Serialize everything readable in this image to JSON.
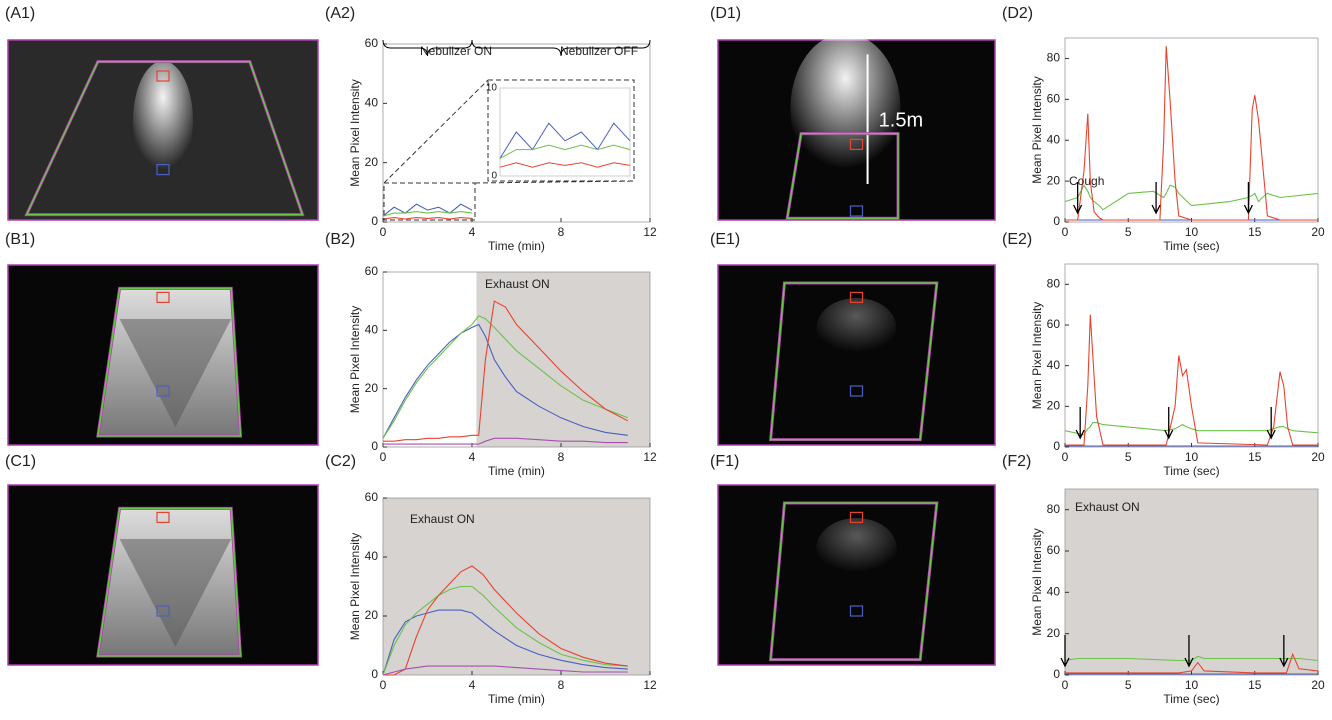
{
  "photo_labels": [
    "(A1)",
    "(B1)",
    "(C1)",
    "(D1)",
    "(E1)",
    "(F1)"
  ],
  "photo_text": "1.5m",
  "chart_data": [
    {
      "type": "line",
      "label": "(A2)",
      "xlabel": "Time (min)",
      "ylabel": "Mean Pixel Intensity",
      "xlim": [
        0,
        12
      ],
      "ylim": [
        0,
        60
      ],
      "xticks": [
        0,
        4,
        8,
        12
      ],
      "yticks": [
        0,
        20,
        40,
        60
      ],
      "annotations": [
        "Nebulizer ON",
        "Nebulizer OFF"
      ],
      "inset": {
        "ylim": [
          0,
          10
        ],
        "yticks": [
          0,
          10
        ]
      },
      "series": [
        {
          "color": "#4a5fc1",
          "x": [
            0,
            0.5,
            1,
            1.5,
            2,
            2.5,
            3,
            3.5,
            4
          ],
          "values": [
            2,
            5,
            3,
            6,
            4,
            5,
            3,
            6,
            4
          ]
        },
        {
          "color": "#6cc24a",
          "x": [
            0,
            0.5,
            1,
            1.5,
            2,
            2.5,
            3,
            3.5,
            4
          ],
          "values": [
            2,
            3,
            3,
            3.5,
            3,
            3.5,
            3,
            3.5,
            3
          ]
        },
        {
          "color": "#e8432f",
          "x": [
            0,
            0.5,
            1,
            1.5,
            2,
            2.5,
            3,
            3.5,
            4
          ],
          "values": [
            1,
            1.5,
            1,
            1.5,
            1.2,
            1.5,
            1,
            1.5,
            1.2
          ]
        }
      ]
    },
    {
      "type": "line",
      "label": "(B2)",
      "xlabel": "Time (min)",
      "ylabel": "Mean Pixel Intensity",
      "xlim": [
        0,
        12
      ],
      "ylim": [
        0,
        60
      ],
      "xticks": [
        0,
        4,
        8,
        12
      ],
      "yticks": [
        0,
        20,
        40,
        60
      ],
      "shade": [
        4.2,
        12
      ],
      "annotations": [
        "Exhaust ON"
      ],
      "series": [
        {
          "color": "#4a5fc1",
          "x": [
            0,
            0.5,
            1,
            1.5,
            2,
            2.5,
            3,
            3.5,
            4,
            4.3,
            4.6,
            5,
            5.5,
            6,
            7,
            8,
            9,
            10,
            11
          ],
          "values": [
            3,
            10,
            17,
            23,
            28,
            32,
            36,
            39,
            41,
            42,
            38,
            30,
            24,
            19,
            14,
            10,
            7,
            5,
            4
          ]
        },
        {
          "color": "#6cc24a",
          "x": [
            0,
            0.5,
            1,
            1.5,
            2,
            2.5,
            3,
            3.5,
            4,
            4.3,
            4.6,
            5,
            5.5,
            6,
            7,
            8,
            9,
            10,
            11
          ],
          "values": [
            3,
            9,
            16,
            22,
            27,
            31,
            35,
            39,
            42,
            45,
            44,
            41,
            37,
            33,
            27,
            21,
            16,
            13,
            10
          ]
        },
        {
          "color": "#e8432f",
          "x": [
            0,
            0.5,
            1,
            1.5,
            2,
            2.5,
            3,
            3.5,
            4,
            4.3,
            4.6,
            5,
            5.5,
            6,
            7,
            8,
            9,
            10,
            11
          ],
          "values": [
            2,
            2,
            2.5,
            2.5,
            3,
            3,
            3.5,
            3.5,
            4,
            4,
            30,
            50,
            48,
            42,
            34,
            26,
            19,
            13,
            9
          ]
        },
        {
          "color": "#a650b0",
          "x": [
            0,
            0.5,
            1,
            1.5,
            2,
            2.5,
            3,
            3.5,
            4,
            4.3,
            4.6,
            5,
            5.5,
            6,
            7,
            8,
            9,
            10,
            11
          ],
          "values": [
            1,
            1,
            1,
            1,
            1,
            1,
            1,
            1,
            1,
            1,
            2,
            3,
            3,
            3,
            2.5,
            2,
            2,
            1.5,
            1.5
          ]
        }
      ]
    },
    {
      "type": "line",
      "label": "(C2)",
      "xlabel": "Time (min)",
      "ylabel": "Mean Pixel Intensity",
      "xlim": [
        0,
        12
      ],
      "ylim": [
        0,
        60
      ],
      "xticks": [
        0,
        4,
        8,
        12
      ],
      "yticks": [
        0,
        20,
        40,
        60
      ],
      "shade": [
        0,
        12
      ],
      "annotations": [
        "Exhaust ON"
      ],
      "series": [
        {
          "color": "#4a5fc1",
          "x": [
            0,
            0.5,
            1,
            1.5,
            2,
            2.5,
            3,
            3.5,
            4,
            4.5,
            5,
            6,
            7,
            8,
            9,
            10,
            11
          ],
          "values": [
            0,
            12,
            18,
            20,
            21,
            22,
            22,
            22,
            21,
            18,
            15,
            10,
            7,
            5,
            3.5,
            2.5,
            2
          ]
        },
        {
          "color": "#6cc24a",
          "x": [
            0,
            0.5,
            1,
            1.5,
            2,
            2.5,
            3,
            3.5,
            4,
            4.5,
            5,
            6,
            7,
            8,
            9,
            10,
            11
          ],
          "values": [
            0,
            10,
            17,
            21,
            24,
            27,
            29,
            30,
            30,
            27,
            23,
            16,
            11,
            7,
            5,
            3.5,
            3
          ]
        },
        {
          "color": "#e8432f",
          "x": [
            0,
            0.5,
            1,
            1.5,
            2,
            2.5,
            3,
            3.5,
            4,
            4.5,
            5,
            6,
            7,
            8,
            9,
            10,
            11
          ],
          "values": [
            0,
            0,
            2,
            13,
            22,
            27,
            31,
            35,
            37,
            34,
            29,
            21,
            14,
            9,
            6,
            4,
            3
          ]
        },
        {
          "color": "#a650b0",
          "x": [
            0,
            0.5,
            1,
            1.5,
            2,
            2.5,
            3,
            3.5,
            4,
            4.5,
            5,
            6,
            7,
            8,
            9,
            10,
            11
          ],
          "values": [
            0,
            1,
            2,
            2.5,
            3,
            3,
            3,
            3,
            3,
            3,
            3,
            2.5,
            2,
            1.5,
            1,
            1,
            1
          ]
        }
      ]
    },
    {
      "type": "line",
      "label": "(D2)",
      "xlabel": "Time (sec)",
      "ylabel": "Mean Pixel Intensity",
      "xlim": [
        0,
        20
      ],
      "ylim": [
        0,
        90
      ],
      "xticks": [
        0,
        5,
        10,
        15,
        20
      ],
      "yticks": [
        0,
        20,
        40,
        60,
        80
      ],
      "annotations": [
        "Cough"
      ],
      "arrows": [
        1,
        7.2,
        14.5
      ],
      "series": [
        {
          "color": "#6cc24a",
          "x": [
            0,
            1,
            1.5,
            1.8,
            2,
            2.3,
            2.7,
            3,
            5,
            7,
            7.5,
            7.8,
            8,
            8.3,
            8.7,
            9,
            10,
            13,
            14.5,
            14.8,
            15,
            15.3,
            15.6,
            16,
            17,
            20
          ],
          "values": [
            10,
            12,
            18,
            15,
            12,
            10,
            8,
            6,
            14,
            15,
            13,
            12,
            14,
            18,
            17,
            14,
            8,
            10,
            12,
            13,
            14,
            10,
            12,
            14,
            12,
            14
          ]
        },
        {
          "color": "#4a5fc1",
          "x": [
            0,
            5,
            10,
            15,
            20
          ],
          "values": [
            1,
            1,
            1,
            1,
            1
          ]
        },
        {
          "color": "#e8432f",
          "x": [
            0,
            1,
            1.5,
            1.8,
            2,
            2.3,
            2.7,
            3,
            5,
            7,
            7.5,
            7.8,
            8,
            8.3,
            8.7,
            9,
            10,
            13,
            14.5,
            14.8,
            15,
            15.3,
            15.6,
            16,
            17,
            20
          ],
          "values": [
            1,
            1,
            25,
            53,
            20,
            5,
            2,
            1,
            1,
            1,
            1,
            40,
            86,
            60,
            20,
            3,
            1,
            1,
            1,
            55,
            62,
            50,
            30,
            3,
            1,
            1
          ]
        }
      ]
    },
    {
      "type": "line",
      "label": "(E2)",
      "xlabel": "Time (sec)",
      "ylabel": "Mean Pixel Intensity",
      "xlim": [
        0,
        20
      ],
      "ylim": [
        0,
        90
      ],
      "xticks": [
        0,
        5,
        10,
        15,
        20
      ],
      "yticks": [
        0,
        20,
        40,
        60,
        80
      ],
      "arrows": [
        1.2,
        8.2,
        16.3
      ],
      "series": [
        {
          "color": "#6cc24a",
          "x": [
            0,
            1.5,
            1.8,
            2,
            2.2,
            2.5,
            3,
            8,
            8.7,
            9,
            9.3,
            9.6,
            10,
            10.5,
            16,
            16.5,
            17,
            17.3,
            17.6,
            18,
            20
          ],
          "values": [
            8,
            6,
            9,
            10,
            12,
            12,
            11,
            8,
            9,
            10,
            11,
            10,
            9,
            8,
            8,
            9,
            10,
            10,
            9,
            8,
            7
          ]
        },
        {
          "color": "#4a5fc1",
          "x": [
            0,
            5,
            10,
            15,
            20
          ],
          "values": [
            0.5,
            0.5,
            0.5,
            0.5,
            0.5
          ]
        },
        {
          "color": "#e8432f",
          "x": [
            0,
            1.5,
            1.8,
            2,
            2.2,
            2.5,
            3,
            8,
            8.7,
            9,
            9.3,
            9.6,
            10,
            10.5,
            16,
            16.5,
            17,
            17.3,
            17.6,
            18,
            20
          ],
          "values": [
            1,
            1,
            30,
            65,
            45,
            15,
            1,
            1,
            20,
            45,
            35,
            38,
            20,
            2,
            1,
            10,
            37,
            30,
            10,
            1,
            1
          ]
        }
      ]
    },
    {
      "type": "line",
      "label": "(F2)",
      "xlabel": "Time (sec)",
      "ylabel": "Mean Pixel Intensity",
      "xlim": [
        0,
        20
      ],
      "ylim": [
        0,
        90
      ],
      "xticks": [
        0,
        5,
        10,
        15,
        20
      ],
      "yticks": [
        0,
        20,
        40,
        60,
        80
      ],
      "shade": [
        0,
        20
      ],
      "annotations": [
        "Exhaust ON"
      ],
      "arrows": [
        0,
        9.8,
        17.3
      ],
      "series": [
        {
          "color": "#6cc24a",
          "x": [
            0,
            1,
            5,
            9,
            10,
            10.5,
            11,
            15,
            17.5,
            18,
            18.5,
            20
          ],
          "values": [
            7,
            8,
            8,
            7,
            7,
            9,
            8,
            8,
            8,
            8,
            8,
            7
          ]
        },
        {
          "color": "#4a5fc1",
          "x": [
            0,
            5,
            10,
            15,
            20
          ],
          "values": [
            0.5,
            0.5,
            0.5,
            0.5,
            0.5
          ]
        },
        {
          "color": "#e8432f",
          "x": [
            0,
            1,
            5,
            9,
            10,
            10.5,
            11,
            15,
            17.5,
            18,
            18.5,
            20
          ],
          "values": [
            1,
            1,
            1,
            1,
            2,
            6,
            2,
            1,
            1,
            10,
            3,
            2
          ]
        }
      ]
    }
  ]
}
